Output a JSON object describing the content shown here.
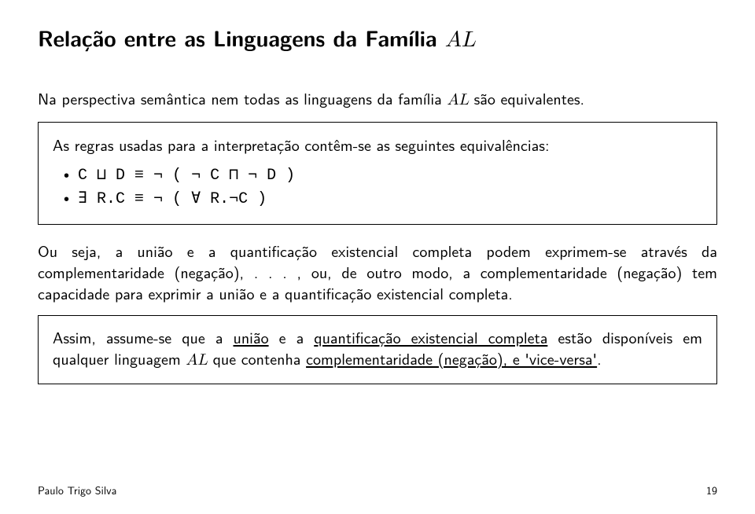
{
  "title_prefix": "Relação entre as Linguagens da Família ",
  "title_family": "AL",
  "intro_prefix": "Na perspectiva semântica nem todas as linguagens da família ",
  "intro_family": "AL",
  "intro_suffix": " são equivalentes.",
  "box1": {
    "lead": "As regras usadas para a interpretação contêm-se as seguintes equivalências:",
    "item1": "C ⊔ D  ≡  ¬ ( ¬ C ⊓ ¬ D )",
    "item2": "∃ R.C  ≡  ¬ ( ∀ R.¬C )"
  },
  "mid": "Ou seja, a união e a quantificação existencial completa podem exprimem-se através da complementaridade (negação), . . . , ou, de outro modo, a complementaridade (negação) tem capacidade para exprimir a união e a quantificação existencial completa.",
  "box2_p1": "Assim, assume-se que a ",
  "box2_u1": "união",
  "box2_p2": " e a ",
  "box2_u2": "quantificação existencial completa",
  "box2_p3": " estão disponíveis em qualquer linguagem ",
  "box2_family": "AL",
  "box2_p4": " que contenha ",
  "box2_u3": "complementaridade (negação), e 'vice-versa'",
  "box2_p5": ".",
  "footer_author": "Paulo Trigo Silva",
  "footer_page": "19"
}
